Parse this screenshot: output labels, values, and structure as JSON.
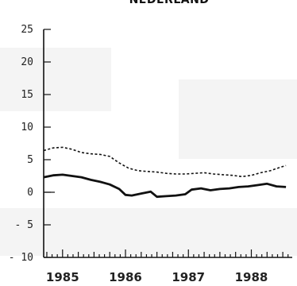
{
  "chart_data": {
    "type": "line",
    "title": "NEDERLAND",
    "xlabel": "",
    "ylabel": "",
    "ylim": [
      -10,
      25
    ],
    "yticks": [
      25,
      20,
      15,
      10,
      5,
      0,
      -5,
      -10
    ],
    "ytick_labels": [
      "25",
      "20",
      "15",
      "10",
      "5",
      "0",
      "- 5",
      "- 10"
    ],
    "xlim": [
      1984.7,
      1988.65
    ],
    "xtick_labels": [
      {
        "label": "1985",
        "x": 1985.0
      },
      {
        "label": "1986",
        "x": 1986.0
      },
      {
        "label": "1987",
        "x": 1987.0
      },
      {
        "label": "1988",
        "x": 1988.0
      }
    ],
    "grid": false,
    "series": [
      {
        "style": "dashed",
        "x": [
          1984.7,
          1984.85,
          1985.0,
          1985.15,
          1985.3,
          1985.45,
          1985.6,
          1985.75,
          1985.9,
          1986.05,
          1986.2,
          1986.35,
          1986.5,
          1986.65,
          1986.8,
          1986.95,
          1987.1,
          1987.25,
          1987.4,
          1987.55,
          1987.7,
          1987.85,
          1988.0,
          1988.15,
          1988.3,
          1988.45,
          1988.55
        ],
        "y": [
          6.4,
          6.8,
          6.9,
          6.6,
          6.1,
          5.9,
          5.8,
          5.5,
          4.5,
          3.7,
          3.3,
          3.2,
          3.1,
          2.9,
          2.8,
          2.8,
          2.9,
          3.0,
          2.8,
          2.7,
          2.6,
          2.4,
          2.6,
          3.0,
          3.3,
          3.8,
          4.1
        ]
      },
      {
        "style": "solid",
        "x": [
          1984.7,
          1984.85,
          1985.0,
          1985.15,
          1985.3,
          1985.45,
          1985.6,
          1985.75,
          1985.9,
          1986.0,
          1986.1,
          1986.25,
          1986.4,
          1986.5,
          1986.65,
          1986.8,
          1986.95,
          1987.05,
          1987.2,
          1987.35,
          1987.5,
          1987.65,
          1987.8,
          1987.95,
          1988.1,
          1988.25,
          1988.4,
          1988.55
        ],
        "y": [
          2.3,
          2.6,
          2.7,
          2.5,
          2.3,
          1.9,
          1.6,
          1.2,
          0.5,
          -0.4,
          -0.5,
          -0.2,
          0.1,
          -0.7,
          -0.6,
          -0.5,
          -0.3,
          0.4,
          0.6,
          0.3,
          0.5,
          0.6,
          0.8,
          0.9,
          1.1,
          1.3,
          0.9,
          0.8
        ]
      }
    ]
  }
}
